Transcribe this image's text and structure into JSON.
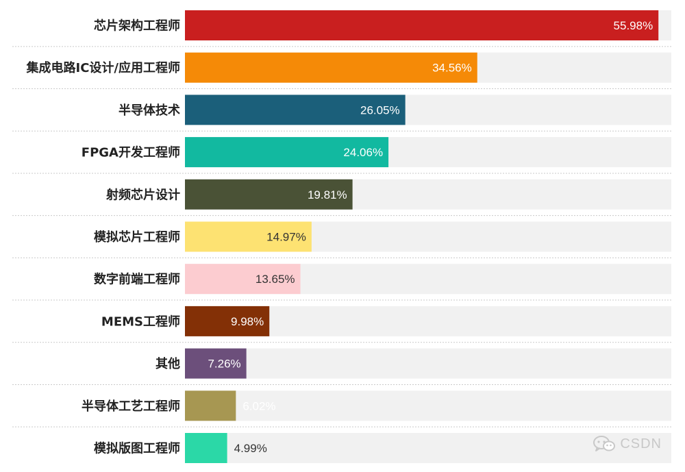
{
  "chart_data": {
    "type": "bar",
    "orientation": "horizontal",
    "categories": [
      "芯片架构工程师",
      "集成电路IC设计/应用工程师",
      "半导体技术",
      "FPGA开发工程师",
      "射频芯片设计",
      "模拟芯片工程师",
      "数字前端工程师",
      "MEMS工程师",
      "其他",
      "半导体工艺工程师",
      "模拟版图工程师"
    ],
    "values": [
      55.98,
      34.56,
      26.05,
      24.06,
      19.81,
      14.97,
      13.65,
      9.98,
      7.26,
      6.02,
      4.99
    ],
    "value_labels": [
      "55.98%",
      "34.56%",
      "26.05%",
      "24.06%",
      "19.81%",
      "14.97%",
      "13.65%",
      "9.98%",
      "7.26%",
      "6.02%",
      "4.99%"
    ],
    "bar_colors": [
      "#c91f1f",
      "#f58a07",
      "#1b5f7a",
      "#12b9a0",
      "#4a5236",
      "#fde272",
      "#fcccd0",
      "#833006",
      "#6c4f7b",
      "#a79752",
      "#2bd8a7"
    ],
    "label_colors": [
      "#ffffff",
      "#ffffff",
      "#ffffff",
      "#ffffff",
      "#ffffff",
      "#333333",
      "#333333",
      "#ffffff",
      "#ffffff",
      "#ffffff",
      "#333333"
    ],
    "track_color": "#f1f1f1",
    "xlim": [
      0,
      57.5
    ],
    "title": "",
    "xlabel": "",
    "ylabel": "",
    "grid": false
  },
  "watermark": {
    "text": "CSDN",
    "icon": "wechat-icon"
  }
}
